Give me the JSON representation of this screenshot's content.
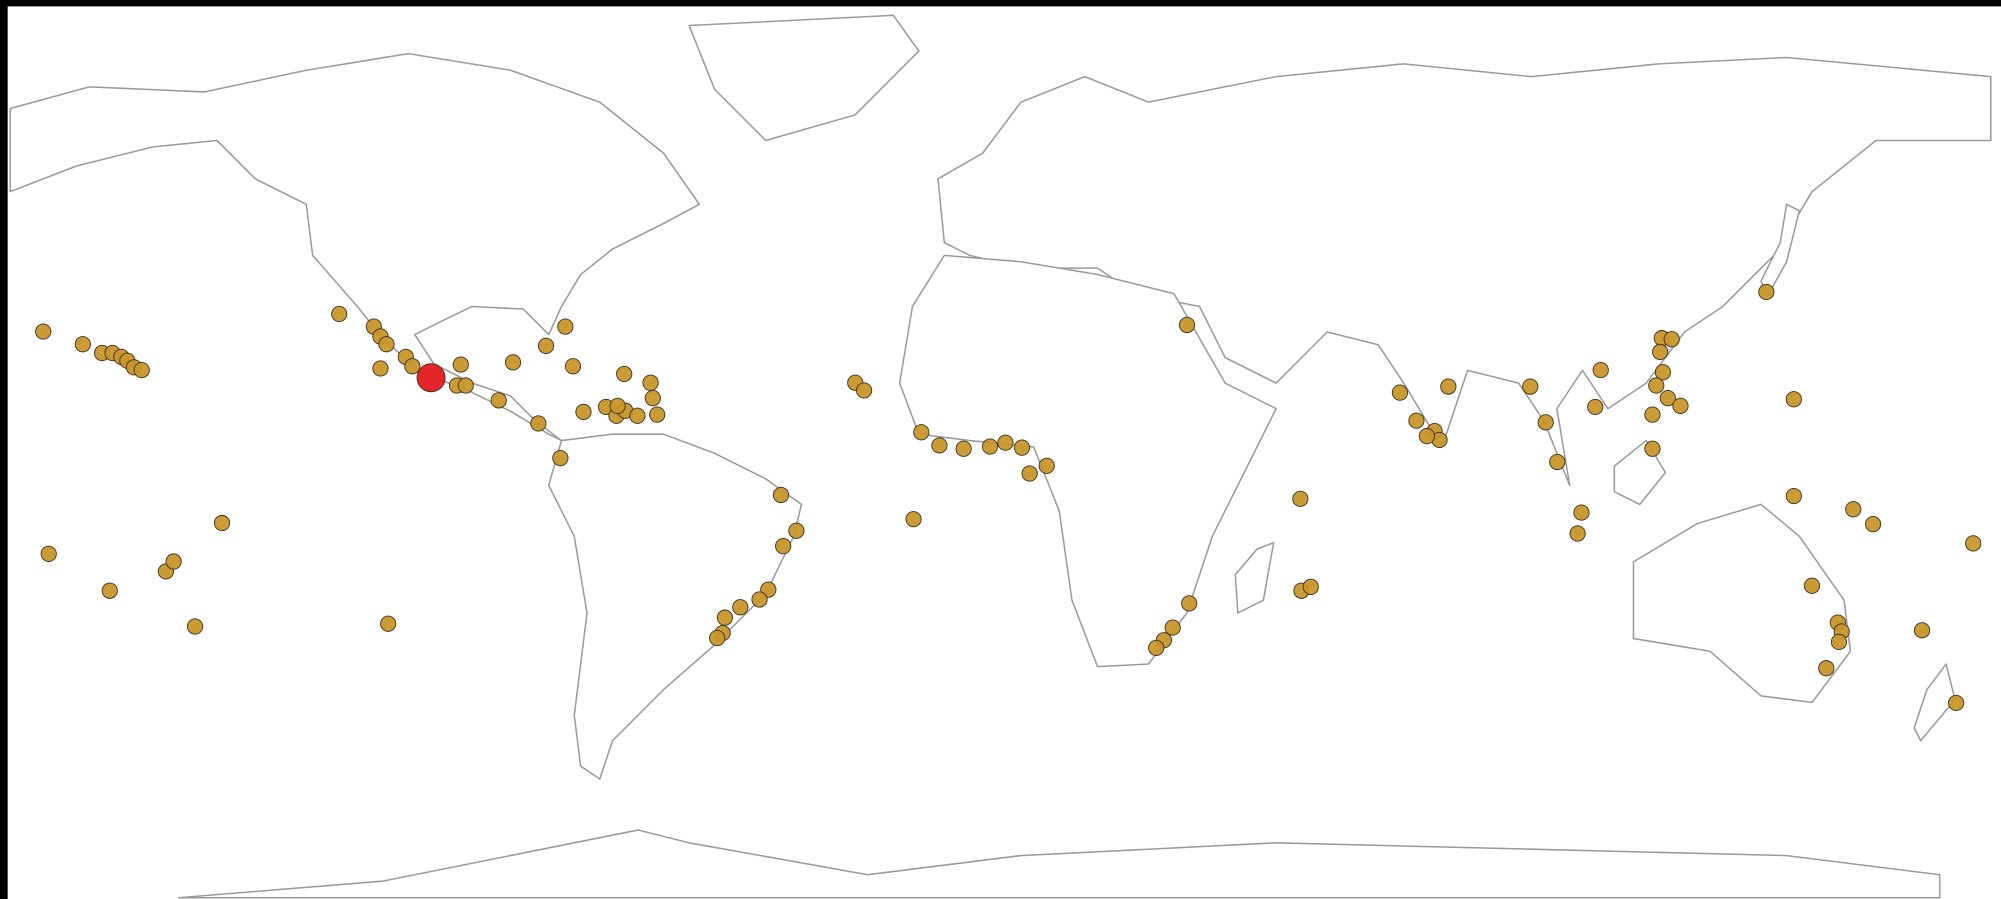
{
  "chart_data": {
    "type": "scatter",
    "xlim": [
      -180,
      180
    ],
    "ylim": [
      -79,
      83
    ],
    "series": [
      {
        "color": "#c8962a",
        "size": 6,
        "x": [
          -174,
          -166.8,
          -163.3,
          -161.4,
          -159.8,
          -158.7,
          -157.5,
          -156.1,
          -173,
          -161.9,
          -151.7,
          -150.3,
          -146.4,
          -141.5,
          -111.3,
          -120.2,
          -113.9,
          -112.7,
          -111.6,
          -112.7,
          -108.1,
          -106.9,
          -98.1,
          -98.8,
          -97.2,
          -91.2,
          -88.6,
          -82.6,
          -79.1,
          -77.7,
          -84,
          -80,
          -75.8,
          -71.7,
          -69.8,
          -68.2,
          -66,
          -68.4,
          -63.6,
          -63.2,
          -62.4,
          -69.6,
          -39.9,
          -37.1,
          -39.5,
          -42.2,
          -43.8,
          -47.3,
          -50.1,
          -50.5,
          -51.5,
          -26.4,
          -24.8,
          -15.8,
          -14.4,
          -11.1,
          -6.7,
          -1.9,
          0.9,
          3.9,
          5.3,
          8.4,
          33.9,
          54.5,
          54.7,
          56.4,
          34.3,
          31.3,
          29.7,
          28.3,
          72.6,
          81.4,
          75.6,
          78.9,
          79.8,
          77.5,
          96.3,
          99.1,
          101.2,
          108.1,
          109.1,
          105.6,
          104.9,
          120.2,
          122,
          119.9,
          120.4,
          119.2,
          121.3,
          123.6,
          118.5,
          118.5,
          139.2,
          144.2,
          144.2,
          155,
          158.6,
          176.8,
          167.5,
          173.7,
          147.5,
          152.2,
          152.9,
          152.4,
          150.1
        ],
        "y": [
          23.9,
          21.6,
          20,
          20,
          19.3,
          18.6,
          17.4,
          16.9,
          -16.5,
          -23.2,
          -19.7,
          -17.9,
          -29.7,
          -10.9,
          -29.2,
          27.1,
          24.8,
          23,
          21.6,
          17.2,
          19.3,
          17.6,
          17.9,
          14.1,
          14.1,
          11.4,
          18.3,
          21.3,
          24.8,
          17.6,
          7.2,
          0.9,
          9.3,
          10.2,
          8.6,
          9.5,
          8.6,
          16.2,
          14.6,
          11.8,
          8.8,
          10.4,
          -5.8,
          -12.3,
          -15.1,
          -23,
          -24.8,
          -26.2,
          -28.1,
          -30.9,
          -31.8,
          14.6,
          13.2,
          -10.2,
          5.6,
          3.2,
          2.6,
          3,
          3.7,
          2.8,
          -1.9,
          -0.5,
          25.1,
          -6.5,
          -23.2,
          -22.5,
          -25.5,
          -29.9,
          -32.2,
          -33.6,
          12.8,
          13.9,
          7.7,
          5.8,
          4.2,
          4.9,
          13.9,
          7.4,
          0.2,
          10.2,
          16.9,
          -9,
          -12.8,
          22.7,
          22.5,
          20.2,
          16.5,
          14.1,
          11.8,
          10.4,
          8.8,
          2.6,
          31.1,
          11.6,
          -6,
          -8.4,
          -11.1,
          -14.6,
          -30.4,
          -43.6,
          -22.3,
          -29,
          -30.6,
          -32.5,
          -37.3
        ]
      },
      {
        "color": "#e31a1c",
        "size": 11,
        "x": [
          -103.5
        ],
        "y": [
          15.5
        ]
      }
    ]
  }
}
